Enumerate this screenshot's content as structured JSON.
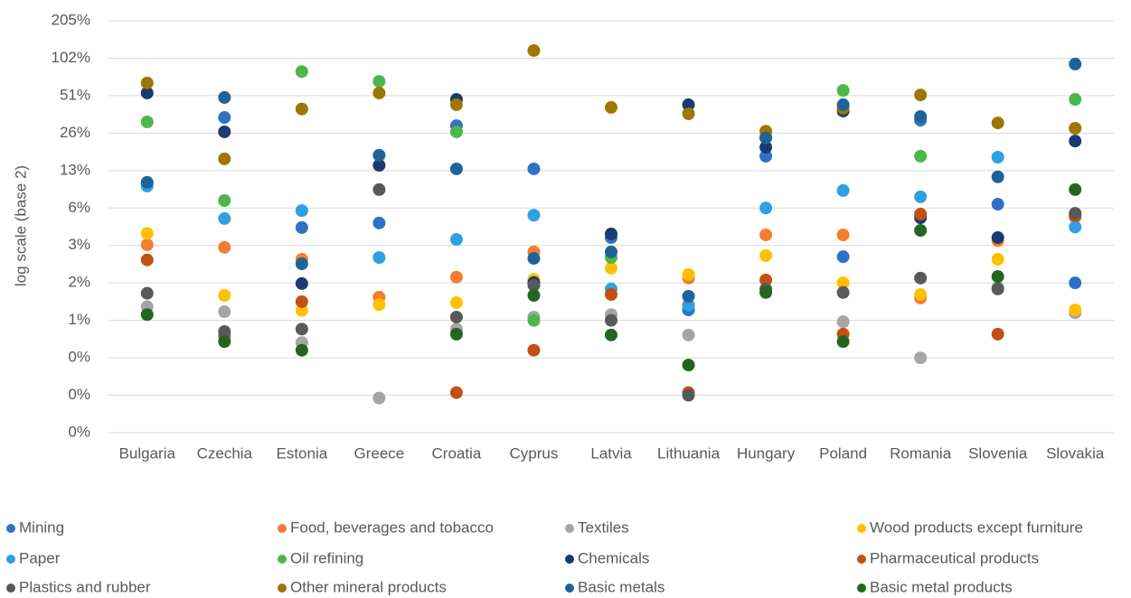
{
  "chart_data": {
    "type": "scatter",
    "y_label": "log scale (base 2)",
    "yscale": "log",
    "log_base": 2,
    "categories": [
      "Bulgaria",
      "Czechia",
      "Estonia",
      "Greece",
      "Croatia",
      "Cyprus",
      "Latvia",
      "Lithuania",
      "Hungary",
      "Poland",
      "Romania",
      "Slovenia",
      "Slovakia"
    ],
    "ylim": [
      0.1,
      204.8
    ],
    "yticks": [
      {
        "value": 0.1,
        "label": "0%"
      },
      {
        "value": 0.2,
        "label": "0%"
      },
      {
        "value": 0.4,
        "label": "0%"
      },
      {
        "value": 0.8,
        "label": "1%"
      },
      {
        "value": 1.6,
        "label": "2%"
      },
      {
        "value": 3.2,
        "label": "3%"
      },
      {
        "value": 6.4,
        "label": "6%"
      },
      {
        "value": 12.8,
        "label": "13%"
      },
      {
        "value": 25.6,
        "label": "26%"
      },
      {
        "value": 51.2,
        "label": "51%"
      },
      {
        "value": 102.4,
        "label": "102%"
      },
      {
        "value": 204.8,
        "label": "205%"
      }
    ],
    "grid": true,
    "legend": "bottom",
    "series": [
      {
        "name": "Mining",
        "color": "#2f72c4",
        "values": [
          10,
          34.2,
          4.46,
          4.85,
          29.4,
          13.2,
          3.7,
          0.97,
          16.7,
          2.6,
          32.5,
          6.87,
          1.6
        ]
      },
      {
        "name": "Food, beverages and tobacco",
        "color": "#f47d30",
        "values": [
          3.24,
          3.09,
          2.48,
          1.23,
          1.78,
          2.84,
          null,
          1.75,
          3.89,
          3.89,
          1.21,
          3.5,
          5.4
        ]
      },
      {
        "name": "Textiles",
        "color": "#a5a5a5",
        "values": [
          1.03,
          0.94,
          0.53,
          0.19,
          0.68,
          0.85,
          0.89,
          0.61,
          null,
          0.78,
          0.4,
          1.47,
          0.92
        ]
      },
      {
        "name": "Wood products except furniture",
        "color": "#ffc000",
        "values": [
          4.0,
          1.27,
          0.96,
          1.07,
          1.11,
          1.71,
          2.1,
          1.87,
          2.65,
          1.6,
          1.29,
          2.48,
          0.97
        ]
      },
      {
        "name": "Paper",
        "color": "#2ea0e4",
        "values": [
          9.6,
          5.27,
          6.1,
          2.56,
          3.58,
          5.6,
          1.43,
          1.06,
          6.4,
          8.85,
          7.87,
          16.4,
          4.5
        ]
      },
      {
        "name": "Oil refining",
        "color": "#4cb848",
        "values": [
          31.5,
          7.35,
          80,
          66.7,
          26.2,
          0.8,
          2.56,
          null,
          23.7,
          56.4,
          16.7,
          null,
          47.8
        ]
      },
      {
        "name": "Chemicals",
        "color": "#1b3a72",
        "values": [
          53.8,
          26.2,
          1.58,
          14.1,
          47.8,
          1.61,
          3.96,
          43.3,
          19.7,
          38.5,
          5.35,
          3.7,
          22.1
        ]
      },
      {
        "name": "Pharmaceutical products",
        "color": "#c4500f",
        "values": [
          2.45,
          0.6,
          1.13,
          null,
          0.21,
          0.46,
          1.29,
          0.21,
          1.69,
          0.62,
          5.72,
          0.62,
          5.55
        ]
      },
      {
        "name": "Plastics and rubber",
        "color": "#595959",
        "values": [
          1.32,
          0.65,
          0.68,
          9.0,
          0.85,
          1.53,
          0.8,
          0.2,
          1.43,
          1.34,
          1.75,
          1.43,
          5.8
        ]
      },
      {
        "name": "Other mineral products",
        "color": "#9e7600",
        "values": [
          64.8,
          15.9,
          40,
          53.8,
          43.3,
          118,
          41.2,
          36.6,
          26.5,
          40.5,
          51.9,
          30.9,
          28
        ]
      },
      {
        "name": "Basic metals",
        "color": "#1f6399",
        "values": [
          10.3,
          49.5,
          2.28,
          17,
          13.2,
          2.52,
          2.84,
          1.25,
          23.4,
          43.3,
          34.8,
          11.4,
          91.9
        ]
      },
      {
        "name": "Basic metal products",
        "color": "#23661f",
        "values": [
          0.89,
          0.54,
          0.46,
          null,
          0.62,
          1.27,
          0.61,
          0.35,
          1.34,
          0.54,
          4.23,
          1.8,
          9.0
        ]
      }
    ]
  }
}
